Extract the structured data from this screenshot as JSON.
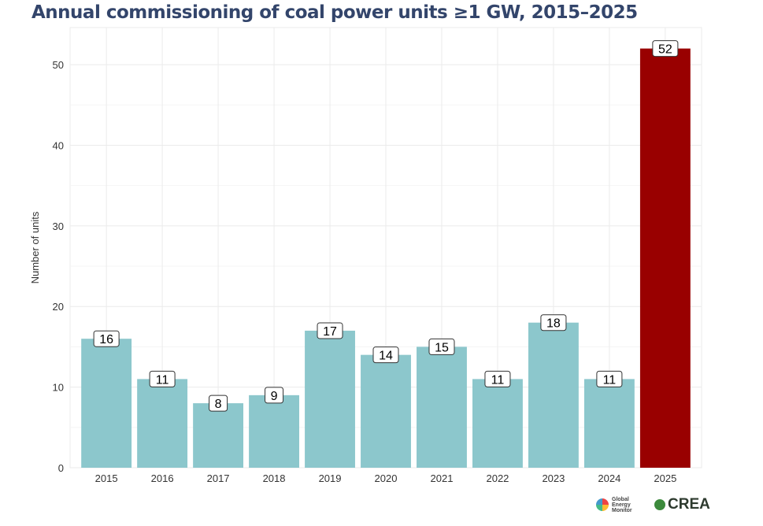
{
  "chart_data": {
    "type": "bar",
    "title": "Annual commissioning of coal power units ≥1 GW, 2015–2025",
    "xlabel": "",
    "ylabel": "Number of units",
    "categories": [
      "2015",
      "2016",
      "2017",
      "2018",
      "2019",
      "2020",
      "2021",
      "2022",
      "2023",
      "2024",
      "2025"
    ],
    "values": [
      16,
      11,
      8,
      9,
      17,
      14,
      15,
      11,
      18,
      11,
      52
    ],
    "yticks": [
      0,
      10,
      20,
      30,
      40,
      50
    ],
    "ylim": [
      0,
      54.6
    ],
    "grid": true,
    "colors": {
      "default": "#8cc7cc",
      "highlight": "#990000"
    },
    "highlight_category": "2025"
  },
  "logos": {
    "gem": "Global Energy Monitor",
    "crea": "CREA"
  }
}
